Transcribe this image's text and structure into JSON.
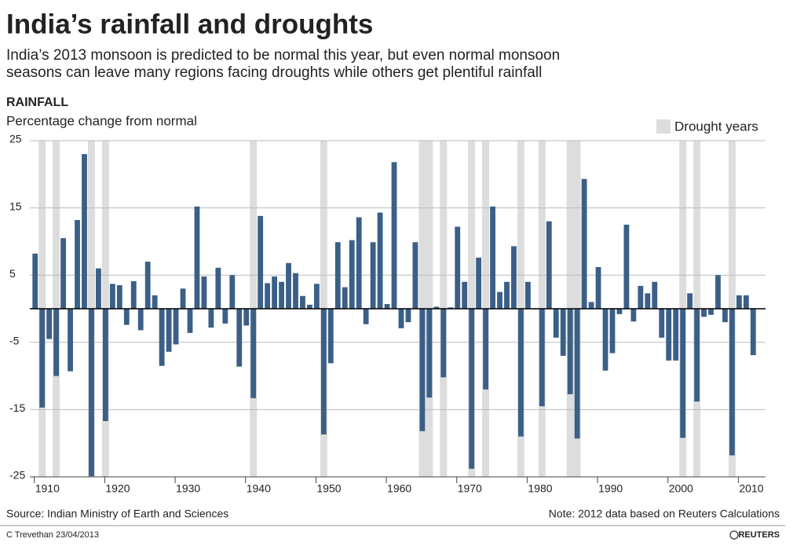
{
  "chart_data": {
    "type": "bar",
    "title": "India’s rainfall and droughts",
    "subtitle": [
      "India’s 2013 monsoon is predicted to be normal this year, but even normal monsoon",
      "seasons can leave many regions facing  droughts while others get plentiful rainfall"
    ],
    "section": "RAINFALL",
    "y_label": "Percentage change from normal",
    "legend": "Drought years",
    "source": "Source:  Indian Ministry of Earth and Sciences",
    "note": "Note: 2012 data based on Reuters Calculations",
    "credit": "C Trevethan   23/04/2013",
    "logo": "REUTERS",
    "color": "#3b5f87",
    "drought_color": "#dddddd",
    "x": [
      1910,
      1911,
      1912,
      1913,
      1914,
      1915,
      1916,
      1917,
      1918,
      1919,
      1920,
      1921,
      1922,
      1923,
      1924,
      1925,
      1926,
      1927,
      1928,
      1929,
      1930,
      1931,
      1932,
      1933,
      1934,
      1935,
      1936,
      1937,
      1938,
      1939,
      1940,
      1941,
      1942,
      1943,
      1944,
      1945,
      1946,
      1947,
      1948,
      1949,
      1950,
      1951,
      1952,
      1953,
      1954,
      1955,
      1956,
      1957,
      1958,
      1959,
      1960,
      1961,
      1962,
      1963,
      1964,
      1965,
      1966,
      1967,
      1968,
      1969,
      1970,
      1971,
      1972,
      1973,
      1974,
      1975,
      1976,
      1977,
      1978,
      1979,
      1980,
      1981,
      1982,
      1983,
      1984,
      1985,
      1986,
      1987,
      1988,
      1989,
      1990,
      1991,
      1992,
      1993,
      1994,
      1995,
      1996,
      1997,
      1998,
      1999,
      2000,
      2001,
      2002,
      2003,
      2004,
      2005,
      2006,
      2007,
      2008,
      2009,
      2010,
      2011,
      2012
    ],
    "values": [
      8.2,
      -14.7,
      -4.5,
      -10,
      10.5,
      -9.3,
      13.2,
      23,
      -24.9,
      6,
      -16.7,
      3.7,
      3.5,
      -2.4,
      4.1,
      -3.2,
      7,
      2,
      -8.5,
      -6.4,
      -5.3,
      3,
      -3.6,
      15.2,
      4.8,
      -2.8,
      6.1,
      -2.2,
      5,
      -8.6,
      -2.5,
      -13.3,
      13.8,
      3.8,
      4.8,
      4,
      6.8,
      5.3,
      1.9,
      0.6,
      3.7,
      -18.7,
      -8.1,
      9.9,
      3.2,
      10.2,
      13.6,
      -2.3,
      9.9,
      14.3,
      0.7,
      21.8,
      -2.9,
      -2,
      9.9,
      -18.2,
      -13.2,
      0.3,
      -10.2,
      0.2,
      12.2,
      4,
      -23.8,
      7.6,
      -12,
      15.2,
      2.5,
      4,
      9.3,
      -19,
      4,
      -0.1,
      -14.5,
      13,
      -4.3,
      -7,
      -12.7,
      -19.3,
      19.3,
      1,
      6.2,
      -9.2,
      -6.6,
      -0.8,
      12.5,
      -1.9,
      3.4,
      2.3,
      4,
      -4.3,
      -7.7,
      -7.7,
      -19.2,
      2.3,
      -13.8,
      -1.2,
      -0.9,
      5,
      -2,
      -21.8,
      2,
      2,
      -6.9
    ],
    "drought_years": [
      1911,
      1913,
      1918,
      1920,
      1941,
      1951,
      1965,
      1966,
      1968,
      1972,
      1974,
      1979,
      1982,
      1986,
      1987,
      2002,
      2004,
      2009
    ],
    "xlim": [
      1909.25,
      2013.75
    ],
    "xticks": [
      1910,
      1920,
      1930,
      1940,
      1950,
      1960,
      1970,
      1980,
      1990,
      2000,
      2010
    ],
    "ylim": [
      -25,
      25
    ],
    "yticks": [
      -25,
      -15,
      -5,
      5,
      15,
      25
    ],
    "grid": true
  }
}
